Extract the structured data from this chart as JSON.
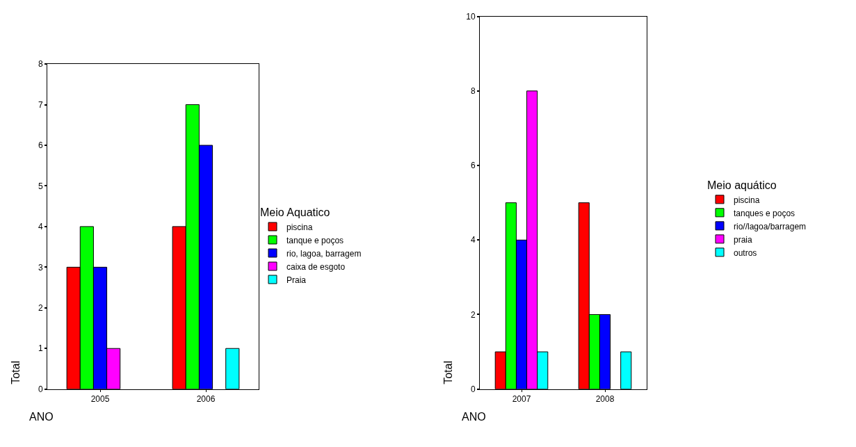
{
  "chart_data": [
    {
      "type": "bar",
      "categories": [
        "2005",
        "2006"
      ],
      "xlabel": "ANO",
      "ylabel": "Total",
      "legend_title": "Meio Aquatico",
      "legend": "right",
      "ylim": [
        0,
        8
      ],
      "yticks": [
        0,
        1,
        2,
        3,
        4,
        5,
        6,
        7,
        8
      ],
      "series": [
        {
          "name": "piscina",
          "color": "#ff0000",
          "values": [
            3,
            4
          ]
        },
        {
          "name": "tanque e poços",
          "color": "#00ff00",
          "values": [
            4,
            7
          ]
        },
        {
          "name": "rio, lagoa, barragem",
          "color": "#0000ff",
          "values": [
            3,
            6
          ]
        },
        {
          "name": "caixa de esgoto",
          "color": "#ff00ff",
          "values": [
            1,
            null
          ]
        },
        {
          "name": "Praia",
          "color": "#00ffff",
          "values": [
            null,
            1
          ]
        }
      ]
    },
    {
      "type": "bar",
      "categories": [
        "2007",
        "2008"
      ],
      "xlabel": "ANO",
      "ylabel": "Total",
      "legend_title": "Meio aquático",
      "legend": "right",
      "ylim": [
        0,
        10
      ],
      "yticks": [
        0,
        2,
        4,
        6,
        8,
        10
      ],
      "series": [
        {
          "name": "piscina",
          "color": "#ff0000",
          "values": [
            1,
            5
          ]
        },
        {
          "name": "tanques e poços",
          "color": "#00ff00",
          "values": [
            5,
            2
          ]
        },
        {
          "name": "rio//lagoa/barragem",
          "color": "#0000ff",
          "values": [
            4,
            2
          ]
        },
        {
          "name": "praia",
          "color": "#ff00ff",
          "values": [
            8,
            null
          ]
        },
        {
          "name": "outros",
          "color": "#00ffff",
          "values": [
            1,
            1
          ]
        }
      ]
    }
  ]
}
